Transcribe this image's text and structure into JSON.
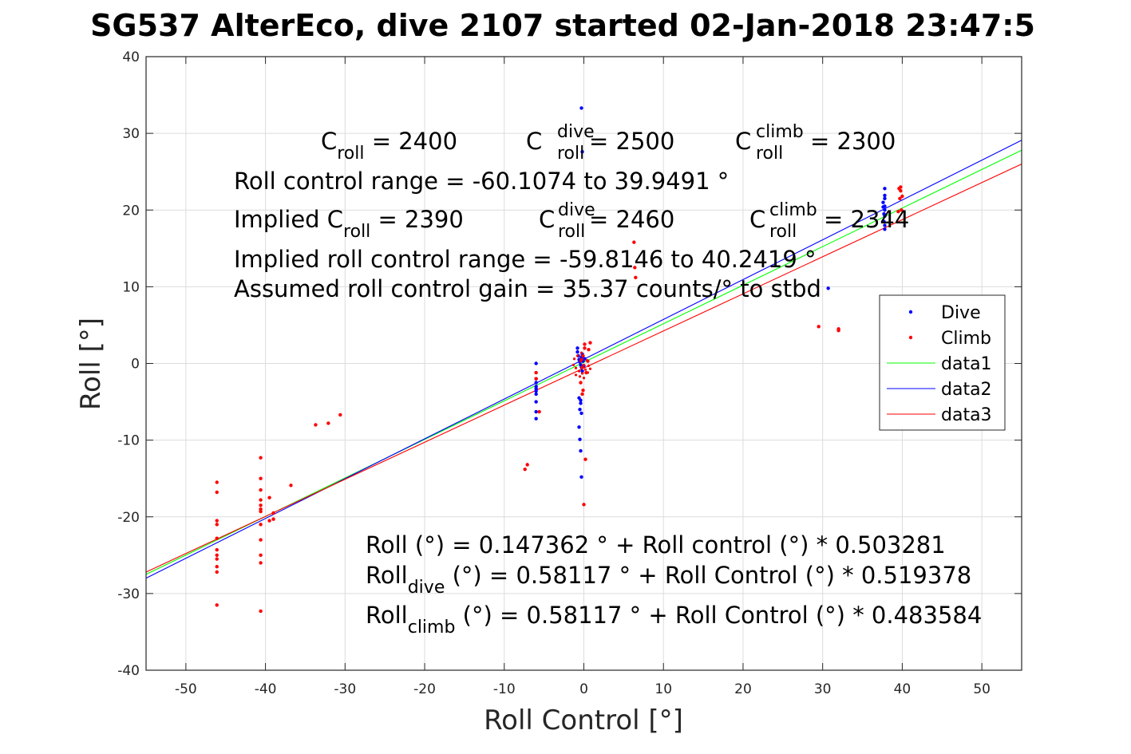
{
  "chart_data": {
    "type": "scatter",
    "title": "SG537 AlterEco, dive 2107 started 02-Jan-2018 23:47:5",
    "xlabel": "Roll Control [°]",
    "ylabel": "Roll [°]",
    "xlim": [
      -55,
      55
    ],
    "ylim": [
      -40,
      40
    ],
    "xticks": [
      -50,
      -40,
      -30,
      -20,
      -10,
      0,
      10,
      20,
      30,
      40,
      50
    ],
    "yticks": [
      -40,
      -30,
      -20,
      -10,
      0,
      10,
      20,
      30,
      40
    ],
    "xtick_labels": [
      "-50",
      "-40",
      "-30",
      "-20",
      "-10",
      "0",
      "10",
      "20",
      "30",
      "40",
      "50"
    ],
    "ytick_labels": [
      "-40",
      "-30",
      "-20",
      "-10",
      "0",
      "10",
      "20",
      "30",
      "40"
    ],
    "grid": true,
    "legend_position": "right",
    "series": [
      {
        "name": "Dive",
        "kind": "points",
        "color": "#0000ff",
        "x": [
          -0.3,
          -0.2,
          -6.0,
          -6.0,
          -6.0,
          -6.0,
          -6.0,
          -6.0,
          -6.0,
          -6.0,
          -6.0,
          -6.0,
          -0.8,
          -0.8,
          -0.7,
          -0.6,
          -0.5,
          -0.4,
          -0.3,
          -0.3,
          -0.2,
          -0.2,
          -0.1,
          0.0,
          0.1,
          -0.6,
          -0.4,
          -0.5,
          -0.3,
          -0.6,
          -0.5,
          -0.4,
          -0.3,
          -0.4,
          37.8,
          37.8,
          37.8,
          37.8,
          37.8,
          37.8,
          37.8,
          37.8,
          37.6,
          37.6,
          37.7,
          37.7,
          30.7
        ],
        "y": [
          33.3,
          27.6,
          0.0,
          -2.0,
          -2.5,
          -3.0,
          -3.3,
          -3.6,
          -4.0,
          -5.0,
          -6.3,
          -7.2,
          2.0,
          1.5,
          1.0,
          0.5,
          0.2,
          -0.2,
          -0.5,
          0.8,
          1.2,
          -1.0,
          0.3,
          -0.3,
          0.6,
          -4.5,
          -4.8,
          -6.0,
          -6.5,
          -8.3,
          -9.9,
          -11.4,
          -14.8,
          -5.2,
          22.8,
          21.9,
          21.5,
          20.5,
          20.0,
          19.2,
          18.0,
          17.5,
          21.0,
          20.4,
          19.5,
          18.5,
          9.8
        ]
      },
      {
        "name": "Climb",
        "kind": "points",
        "color": "#ff0000",
        "x": [
          -46.1,
          -46.1,
          -46.1,
          -46.1,
          -46.1,
          -46.1,
          -46.1,
          -46.1,
          -46.1,
          -46.1,
          -46.1,
          -40.6,
          -40.6,
          -40.6,
          -40.6,
          -40.6,
          -40.6,
          -40.6,
          -40.6,
          -40.6,
          -40.6,
          -40.6,
          -40.6,
          -39.5,
          -39.5,
          -39.0,
          -39.0,
          -36.8,
          -33.7,
          -32.1,
          -30.6,
          -7.1,
          -7.4,
          -5.6,
          -6.0,
          -6.0,
          0.1,
          0.1,
          -0.1,
          -0.3,
          -0.2,
          0.3,
          0.5,
          0.6,
          0.8,
          -0.4,
          -0.1,
          -0.2,
          0.2,
          0.0,
          6.3,
          6.4,
          6.5,
          29.5,
          32.0,
          32.0,
          39.8,
          39.8,
          40.0,
          39.7,
          39.9,
          39.6,
          39.5
        ],
        "y": [
          -15.5,
          -16.8,
          -20.5,
          -21.0,
          -22.8,
          -24.3,
          -25.0,
          -25.5,
          -26.5,
          -27.2,
          -31.5,
          -12.3,
          -15.0,
          -16.5,
          -17.8,
          -18.5,
          -19.3,
          -21.0,
          -23.0,
          -25.0,
          -26.0,
          -32.3,
          -19.0,
          -17.5,
          -20.5,
          -19.5,
          -20.3,
          -15.9,
          -8.0,
          -7.8,
          -6.7,
          -13.2,
          -13.8,
          -6.3,
          -1.2,
          -2.0,
          2.5,
          2.0,
          1.0,
          0.5,
          -0.5,
          -1.2,
          0.3,
          1.8,
          2.7,
          -2.5,
          -3.5,
          -4.0,
          -12.5,
          -18.4,
          15.8,
          12.5,
          11.2,
          4.8,
          4.5,
          4.3,
          23.0,
          22.5,
          21.8,
          21.5,
          20.0,
          22.8,
          19.8
        ],
        "small_dots_x": [
          -1.3,
          -1.0,
          -0.6,
          -0.2,
          0.2,
          0.6,
          -1.2,
          -0.8,
          -0.4,
          0.0,
          0.4,
          0.8,
          -1.0,
          -0.5,
          0.0,
          0.5,
          -0.3
        ],
        "small_dots_y": [
          -0.2,
          -0.6,
          -1.0,
          -1.3,
          -0.8,
          -0.3,
          0.6,
          1.0,
          0.3,
          -0.2,
          0.4,
          -0.7,
          -1.5,
          -1.7,
          -1.9,
          -1.2,
          1.4
        ]
      },
      {
        "name": "data1",
        "kind": "line",
        "color": "#00ff00",
        "x": [
          -55,
          55
        ],
        "y": [
          -27.5,
          27.8
        ]
      },
      {
        "name": "data2",
        "kind": "line",
        "color": "#0000ff",
        "x": [
          -55,
          55
        ],
        "y": [
          -28.0,
          29.1
        ]
      },
      {
        "name": "data3",
        "kind": "line",
        "color": "#ff0000",
        "x": [
          -55,
          55
        ],
        "y": [
          -27.2,
          26.0
        ]
      }
    ]
  },
  "annotations": {
    "croll": {
      "main": "C",
      "sub": "roll",
      "rest": " = 2400"
    },
    "croll_dive": {
      "main": "C",
      "sup": "dive",
      "sub": "roll",
      "rest": " = 2500"
    },
    "croll_climb": {
      "main": "C",
      "sup": "climb",
      "sub": "roll",
      "rest": " = 2300"
    },
    "range_line": "Roll control range = -60.1074 to 39.9491 °",
    "implied_croll": {
      "main": "Implied C",
      "sub": "roll",
      "rest": " = 2390"
    },
    "implied_dive": {
      "main": "C",
      "sup": "dive",
      "sub": "roll",
      "rest": " = 2460"
    },
    "implied_climb": {
      "main": "C",
      "sup": "climb",
      "sub": "roll",
      "rest": " = 2344"
    },
    "implied_range_line": "Implied roll control range = -59.8146 to 40.2419 °",
    "gain_line": "Assumed roll control gain = 35.37 counts/° to stbd",
    "fit_line": "Roll (°) = 0.147362 ° + Roll control (°) * 0.503281",
    "fit_dive": {
      "main": "Roll",
      "sub": "dive",
      "rest": " (°) = 0.58117 ° + Roll Control (°) * 0.519378"
    },
    "fit_climb": {
      "main": "Roll",
      "sub": "climb",
      "rest": " (°) = 0.58117 ° + Roll Control (°) * 0.483584"
    }
  }
}
